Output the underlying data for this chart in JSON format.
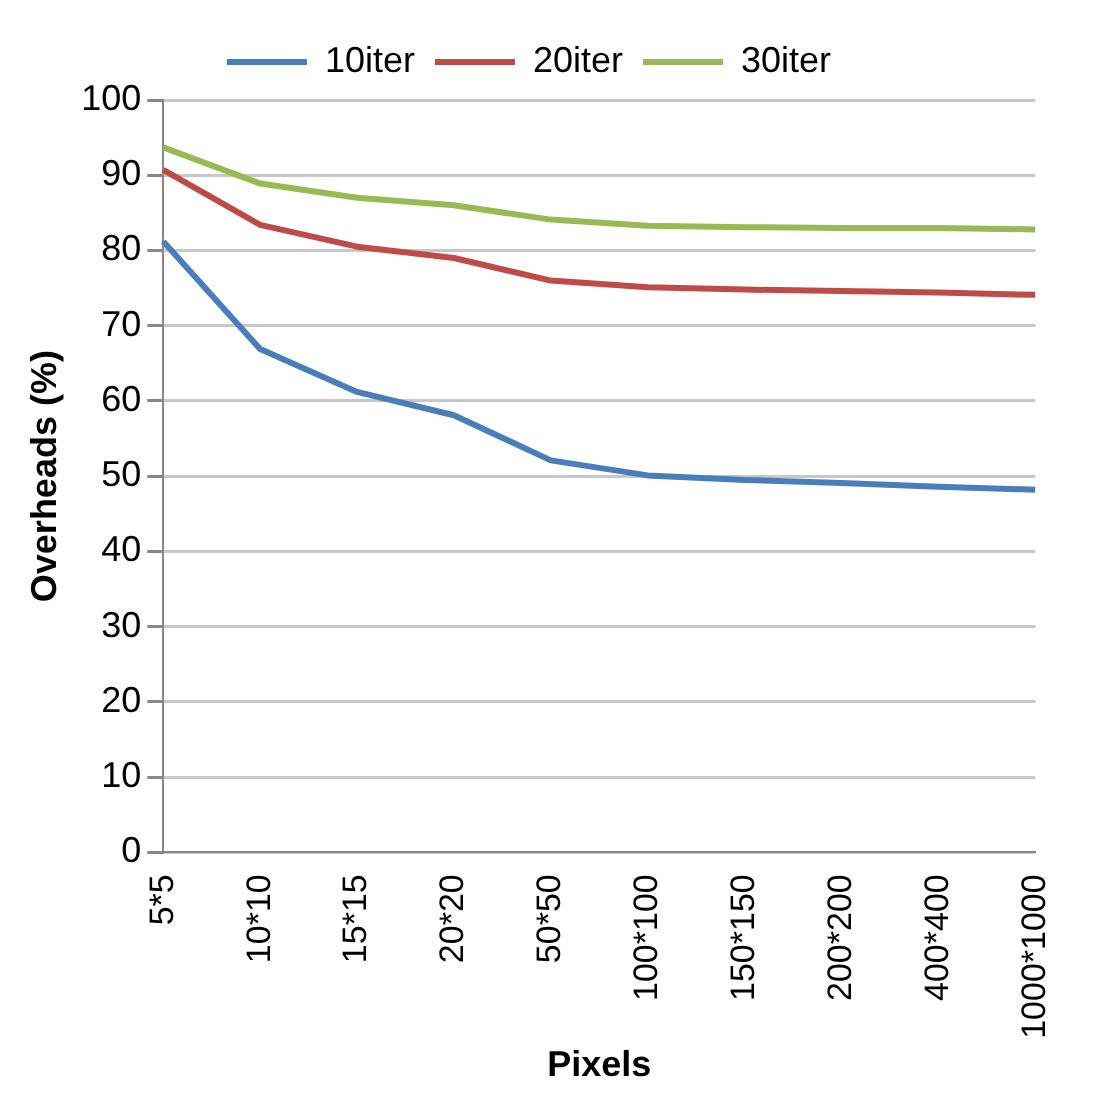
{
  "chart_data": {
    "type": "line",
    "xlabel": "Pixels",
    "ylabel": "Overheads (%)",
    "categories": [
      "5*5",
      "10*10",
      "15*15",
      "20*20",
      "50*50",
      "100*100",
      "150*150",
      "200*200",
      "400*400",
      "1000*1000"
    ],
    "series": [
      {
        "name": "10iter",
        "color": "#4a7ebb",
        "values": [
          81.2,
          66.9,
          61.2,
          58.1,
          52.1,
          50.1,
          49.5,
          49.1,
          48.6,
          48.2
        ]
      },
      {
        "name": "20iter",
        "color": "#be4b48",
        "values": [
          90.7,
          83.4,
          80.5,
          79.0,
          76.0,
          75.1,
          74.8,
          74.6,
          74.4,
          74.1
        ]
      },
      {
        "name": "30iter",
        "color": "#98b954",
        "values": [
          93.7,
          88.9,
          87.0,
          86.0,
          84.1,
          83.3,
          83.1,
          83.0,
          83.0,
          82.8
        ]
      }
    ],
    "ylim": [
      0,
      100
    ],
    "yticks": [
      0,
      10,
      20,
      30,
      40,
      50,
      60,
      70,
      80,
      90,
      100
    ],
    "grid": "y",
    "legend": "top",
    "marker": "none",
    "line_style": "solid"
  }
}
